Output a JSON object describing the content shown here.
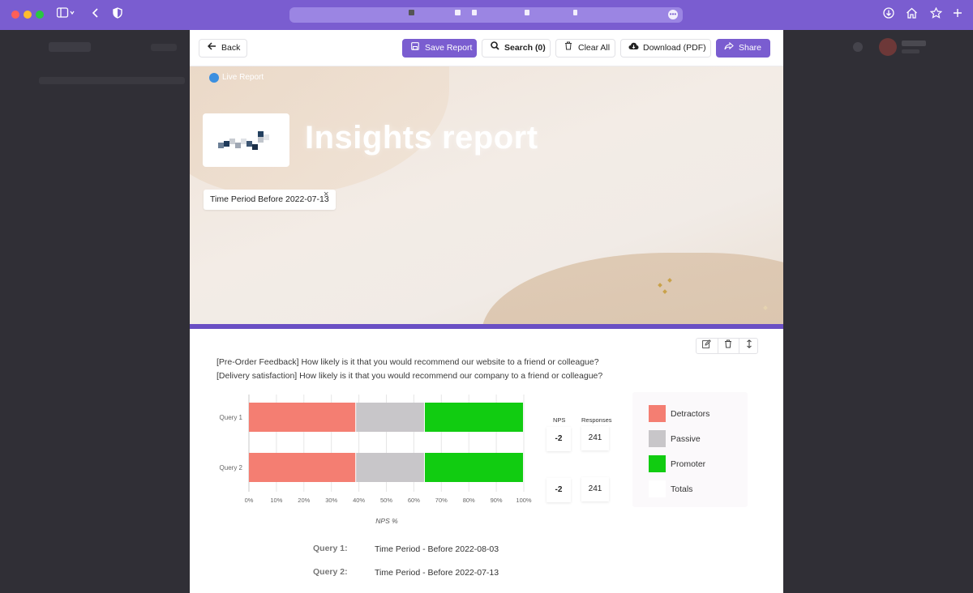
{
  "browser": {
    "icons": {
      "sidebar": "sidebar-icon",
      "back": "chevron-left-icon",
      "privacy": "shield-icon",
      "download": "download-icon",
      "home": "home-icon",
      "bookmark": "star-icon",
      "new_tab": "plus-icon"
    },
    "accent": "#7a5dd0"
  },
  "toolbar": {
    "back_label": "Back",
    "save_label": "Save Report",
    "search_label": "Search (0)",
    "clear_label": "Clear All",
    "download_label": "Download (PDF)",
    "share_label": "Share"
  },
  "banner": {
    "live_label": "Live Report",
    "title": "Insights report",
    "filter_chip": "Time Period Before 2022-07-13",
    "filter_remove": "×"
  },
  "card": {
    "question_1": "[Pre-Order Feedback] How likely is it that you would recommend our website to a friend or colleague?",
    "question_2": "[Delivery satisfaction] How likely is it that you would recommend our company to a friend or colleague?",
    "tools": [
      "edit-icon",
      "trash-icon",
      "reorder-icon"
    ]
  },
  "chart_data": {
    "type": "bar",
    "orientation": "horizontal",
    "stacked": true,
    "categories": [
      "Query 1",
      "Query 2"
    ],
    "series": [
      {
        "name": "Detractors",
        "color": "#f47e72",
        "values": [
          39,
          39
        ]
      },
      {
        "name": "Passive",
        "color": "#c8c6c9",
        "values": [
          25,
          25
        ]
      },
      {
        "name": "Promoter",
        "color": "#11cc11",
        "values": [
          36,
          36
        ]
      }
    ],
    "xlabel": "NPS %",
    "xticks": [
      "0%",
      "10%",
      "20%",
      "30%",
      "40%",
      "50%",
      "60%",
      "70%",
      "80%",
      "90%",
      "100%"
    ],
    "xlim": [
      0,
      100
    ],
    "grid": true,
    "legend": "right",
    "stats": {
      "nps_header": "NPS",
      "responses_header": "Responses",
      "rows": [
        {
          "nps": "-2",
          "responses": "241"
        },
        {
          "nps": "-2",
          "responses": "241"
        }
      ]
    },
    "legend_items": [
      {
        "label": "Detractors",
        "color": "#f47e72"
      },
      {
        "label": "Passive",
        "color": "#c8c6c9"
      },
      {
        "label": "Promoter",
        "color": "#11cc11"
      },
      {
        "label": "Totals",
        "color": "#ffffff"
      }
    ]
  },
  "queries": [
    {
      "name": "Query 1:",
      "value": "Time Period - Before 2022-08-03"
    },
    {
      "name": "Query 2:",
      "value": "Time Period - Before 2022-07-13"
    }
  ]
}
